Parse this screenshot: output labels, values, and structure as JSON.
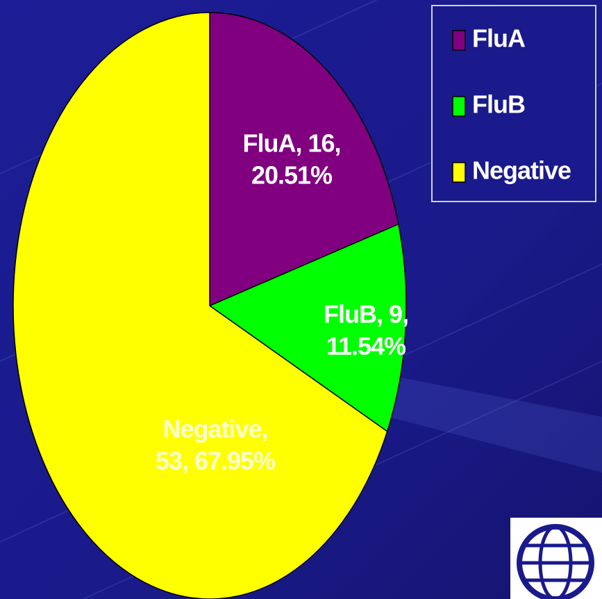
{
  "chart_data": {
    "type": "pie",
    "categories": [
      "FluA",
      "FluB",
      "Negative"
    ],
    "values": [
      16,
      9,
      53
    ],
    "value_labels": [
      [
        "FluA, 16,",
        "20.51%"
      ],
      [
        "FluB, 9,",
        "11.54%"
      ],
      [
        "Negative,",
        "53, 67.95%"
      ]
    ],
    "colors": [
      "#800080",
      "#00ff00",
      "#ffff00"
    ],
    "legend": "top-right"
  }
}
